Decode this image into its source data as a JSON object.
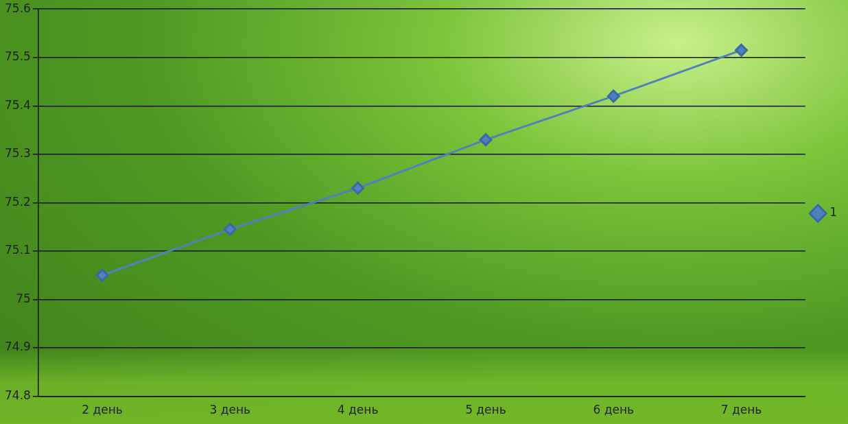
{
  "chart_data": {
    "type": "line",
    "categories": [
      "2 день",
      "3 день",
      "4 день",
      "5 день",
      "6 день",
      "7 день"
    ],
    "series": [
      {
        "name": "1",
        "color": "#4f81bd",
        "marker": "diamond",
        "values": [
          75.05,
          75.145,
          75.23,
          75.33,
          75.42,
          75.515
        ]
      }
    ],
    "ylim": [
      74.8,
      75.6
    ],
    "yticks": [
      74.8,
      74.9,
      75,
      75.1,
      75.2,
      75.3,
      75.4,
      75.5,
      75.6
    ],
    "grid": true,
    "legend": "right"
  }
}
